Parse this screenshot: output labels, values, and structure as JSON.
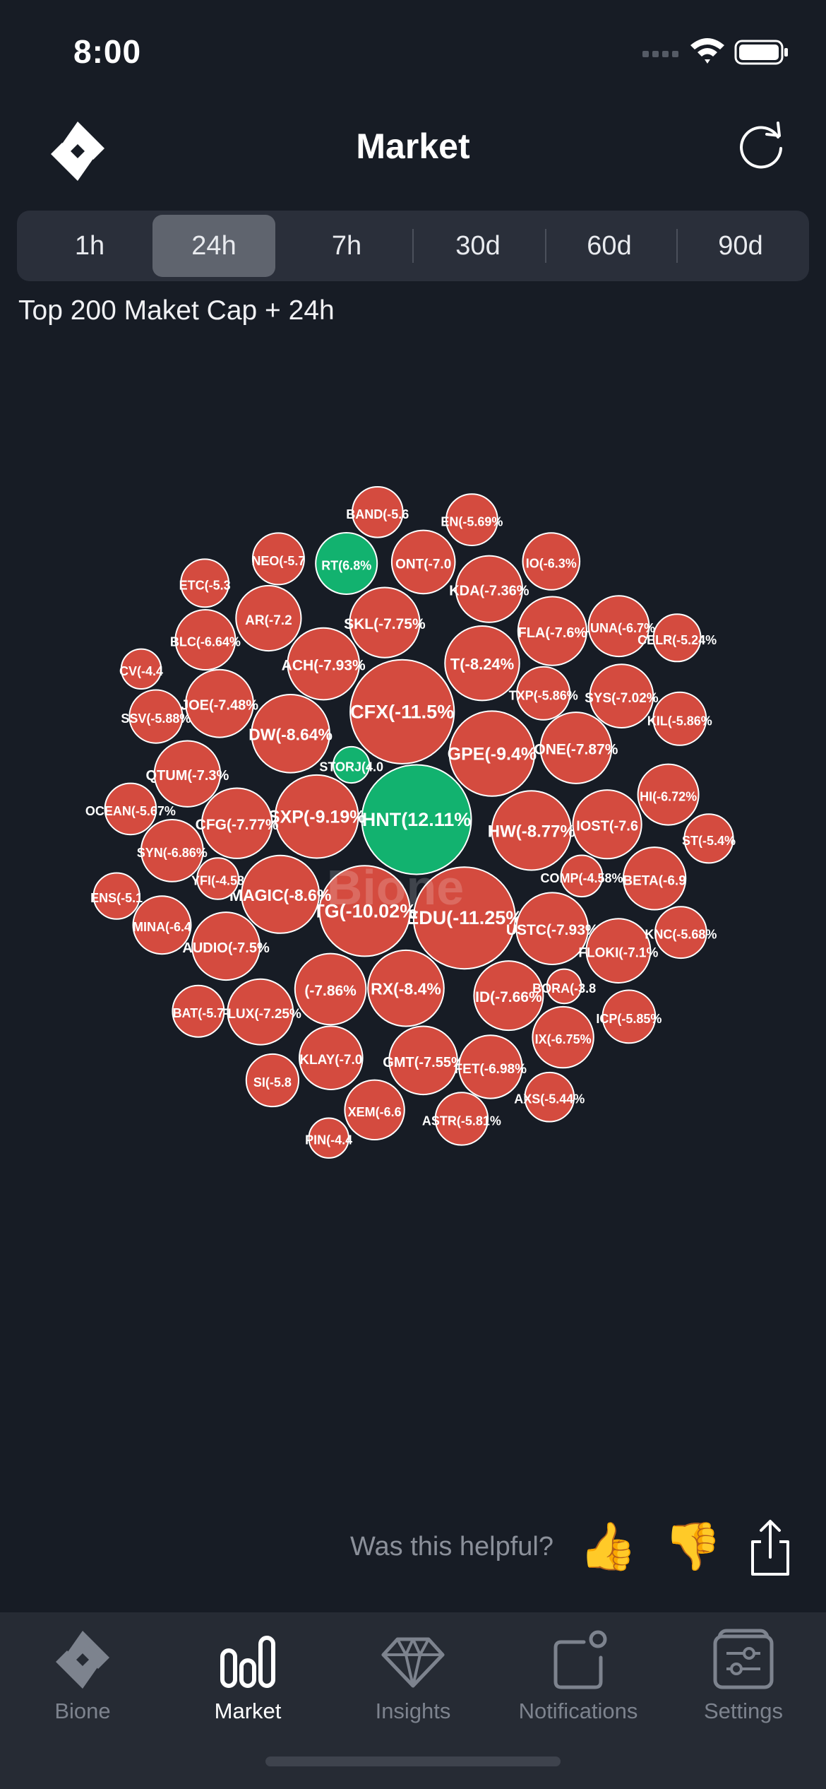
{
  "status": {
    "time": "8:00"
  },
  "header": {
    "title": "Market"
  },
  "timeframes": [
    {
      "label": "1h"
    },
    {
      "label": "24h"
    },
    {
      "label": "7h"
    },
    {
      "label": "30d"
    },
    {
      "label": "60d"
    },
    {
      "label": "90d"
    }
  ],
  "active_timeframe": 1,
  "subtitle": "Top 200 Maket Cap + 24h",
  "watermark": "Bione",
  "colors": {
    "negative": "#d44b3f",
    "positive": "#12b26f",
    "background": "#171c25"
  },
  "chart_data": {
    "type": "bubble",
    "series_text": "24h change",
    "bubbles": [
      {
        "label": "HNT(12.11%",
        "value": 12.11
      },
      {
        "label": "EDU(-11.25%",
        "value": -11.25
      },
      {
        "label": "TG(-10.02%",
        "value": -10.02
      },
      {
        "label": "CFX(-11.5%",
        "value": -11.5
      },
      {
        "label": "SXP(-9.19%",
        "value": -9.19
      },
      {
        "label": "GPE(-9.4%",
        "value": -9.4
      },
      {
        "label": "HW(-8.77%",
        "value": -8.77
      },
      {
        "label": "DW(-8.64%",
        "value": -8.64
      },
      {
        "label": "MAGIC(-8.6%",
        "value": -8.6
      },
      {
        "label": "RX(-8.4%",
        "value": -8.4
      },
      {
        "label": "T(-8.24%",
        "value": -8.24
      },
      {
        "label": "USTC(-7.93%",
        "value": -7.93
      },
      {
        "label": "ONE(-7.87%",
        "value": -7.87
      },
      {
        "label": "(-7.86%",
        "value": -7.86
      },
      {
        "label": "CFG(-7.77%",
        "value": -7.77
      },
      {
        "label": "SKL(-7.75%",
        "value": -7.75
      },
      {
        "label": "ACH(-7.93%",
        "value": -7.93
      },
      {
        "label": "ID(-7.66%",
        "value": -7.66
      },
      {
        "label": "IOST(-7.6",
        "value": -7.6
      },
      {
        "label": "GMT(-7.55%",
        "value": -7.55
      },
      {
        "label": "AUDIO(-7.5%",
        "value": -7.5
      },
      {
        "label": "JOE(-7.48%",
        "value": -7.48
      },
      {
        "label": "KDA(-7.36%",
        "value": -7.36
      },
      {
        "label": "QTUM(-7.3%",
        "value": -7.3
      },
      {
        "label": "FLUX(-7.25%",
        "value": -7.25
      },
      {
        "label": "FLOKI(-7.1%",
        "value": -7.1
      },
      {
        "label": "KLAY(-7.0",
        "value": -7.0
      },
      {
        "label": "SYS(-7.02%",
        "value": -7.02
      },
      {
        "label": "FET(-6.98%",
        "value": -6.98
      },
      {
        "label": "SYN(-6.86%",
        "value": -6.86
      },
      {
        "label": "HI(-6.72%",
        "value": -6.72
      },
      {
        "label": "IX(-6.75%",
        "value": -6.75
      },
      {
        "label": "LUNA(-6.7%",
        "value": -6.7
      },
      {
        "label": "FLA(-7.6%",
        "value": -7.6
      },
      {
        "label": "SSV(-5.88%",
        "value": -5.88
      },
      {
        "label": "XEM(-6.6",
        "value": -6.6
      },
      {
        "label": "BLC(-6.64%",
        "value": -6.64
      },
      {
        "label": "ONT(-7.0",
        "value": -7.0
      },
      {
        "label": "ICP(-5.85%",
        "value": -5.85
      },
      {
        "label": "COMP(-4.58%",
        "value": -4.58
      },
      {
        "label": "ASTR(-5.81%",
        "value": -5.81
      },
      {
        "label": "OCEAN(-5.67%",
        "value": -5.67
      },
      {
        "label": "KNC(-5.68%",
        "value": -5.68
      },
      {
        "label": "BAND(-5.6",
        "value": -5.6
      },
      {
        "label": "TXP(-5.86%",
        "value": -5.86
      },
      {
        "label": "ST(-5.4%",
        "value": -5.4
      },
      {
        "label": "AXS(-5.44%",
        "value": -5.44
      },
      {
        "label": "CELR(-5.24%",
        "value": -5.24
      },
      {
        "label": "ETC(-5.3",
        "value": -5.3
      },
      {
        "label": "STORJ(4.0",
        "value": 4.0
      },
      {
        "label": "RT(6.8%",
        "value": 6.8
      },
      {
        "label": "KIL(-5.86%",
        "value": -5.86
      },
      {
        "label": "IO(-6.3%",
        "value": -6.3
      },
      {
        "label": "MINA(-6.4",
        "value": -6.4
      },
      {
        "label": "BORA(-3.8",
        "value": -3.8
      },
      {
        "label": "SI(-5.8",
        "value": -5.8
      },
      {
        "label": "NEO(-5.7",
        "value": -5.7
      },
      {
        "label": "PIN(-4.4",
        "value": -4.4
      },
      {
        "label": "EN(-5.69%",
        "value": -5.69
      },
      {
        "label": "BAT(-5.7",
        "value": -5.7
      },
      {
        "label": "AR(-7.2",
        "value": -7.2
      },
      {
        "label": "BETA(-6.9",
        "value": -6.9
      },
      {
        "label": "ENS(-5.1",
        "value": -5.1
      },
      {
        "label": "YFI(-4.58",
        "value": -4.58
      },
      {
        "label": "CV(-4.4",
        "value": -4.4
      }
    ]
  },
  "feedback": {
    "question": "Was this helpful?"
  },
  "tabbar": [
    {
      "label": "Bione",
      "icon": "bione-logo-icon"
    },
    {
      "label": "Market",
      "icon": "market-bars-icon"
    },
    {
      "label": "Insights",
      "icon": "diamond-icon"
    },
    {
      "label": "Notifications",
      "icon": "notification-icon"
    },
    {
      "label": "Settings",
      "icon": "settings-icon"
    }
  ],
  "active_tab": 1
}
